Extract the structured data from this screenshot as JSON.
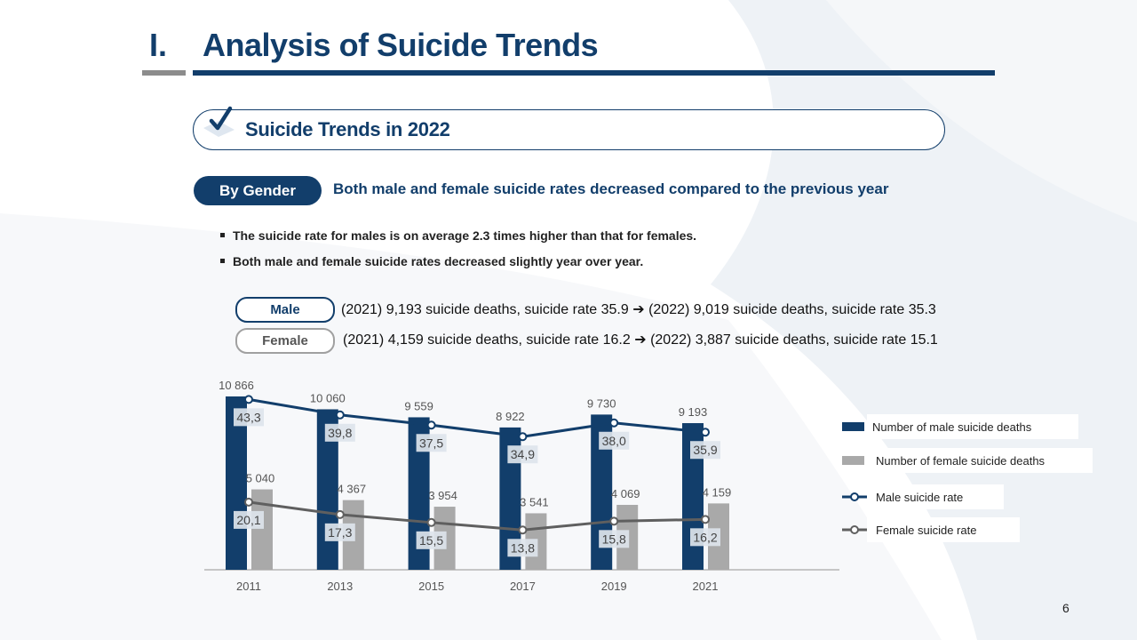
{
  "header": {
    "number": "I.",
    "title": "Analysis of Suicide Trends"
  },
  "section": {
    "title": "Suicide Trends in 2022"
  },
  "gender": {
    "label": "By Gender",
    "summary": "Both male and female suicide rates decreased compared to the previous year",
    "bullets": [
      "The suicide rate for males is on average 2.3 times higher than that for females.",
      "Both male and female suicide rates decreased slightly year over year."
    ],
    "male_tag": "Male",
    "male_text": "(2021) 9,193 suicide deaths, suicide rate 35.9 ➔ (2022) 9,019 suicide deaths, suicide rate 35.3",
    "female_tag": "Female",
    "female_text": "(2021) 4,159 suicide deaths, suicide rate 16.2 ➔ (2022) 3,887 suicide deaths, suicide rate 15.1"
  },
  "page_number": "6",
  "colors": {
    "navy": "#123e6b",
    "gray_bar": "#a9a9a9",
    "female_line": "#5f5f5f"
  },
  "chart_data": {
    "type": "bar",
    "categories": [
      "2011",
      "2013",
      "2015",
      "2017",
      "2019",
      "2021"
    ],
    "series": [
      {
        "name": "Number of male suicide deaths",
        "kind": "bar",
        "values": [
          10866,
          10060,
          9559,
          8922,
          9730,
          9193
        ],
        "labels": [
          "10 866",
          "10 060",
          "9 559",
          "8 922",
          "9 730",
          "9 193"
        ]
      },
      {
        "name": "Number of female suicide deaths",
        "kind": "bar",
        "values": [
          5040,
          4367,
          3954,
          3541,
          4069,
          4159
        ],
        "labels": [
          "5 040",
          "4 367",
          "3 954",
          "3 541",
          "4 069",
          "4 159"
        ]
      },
      {
        "name": "Male suicide rate",
        "kind": "line",
        "values": [
          43.3,
          39.8,
          37.5,
          34.9,
          38.0,
          35.9
        ],
        "labels": [
          "43,3",
          "39,8",
          "37,5",
          "34,9",
          "38,0",
          "35,9"
        ]
      },
      {
        "name": "Female suicide rate",
        "kind": "line",
        "values": [
          20.1,
          17.3,
          15.5,
          13.8,
          15.8,
          16.2
        ],
        "labels": [
          "20,1",
          "17,3",
          "15,5",
          "13,8",
          "15,8",
          "16,2"
        ]
      }
    ],
    "legend_position": "right"
  }
}
